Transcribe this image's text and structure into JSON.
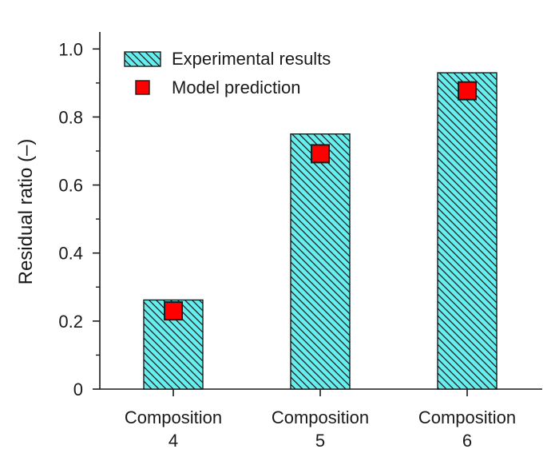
{
  "chart_data": {
    "type": "bar",
    "categories": [
      "Composition\n4",
      "Composition\n5",
      "Composition\n6"
    ],
    "series": [
      {
        "name": "Experimental results",
        "style": "hatched-bar",
        "color": "#66eeee",
        "values": [
          0.262,
          0.75,
          0.93
        ]
      },
      {
        "name": "Model prediction",
        "style": "square-marker",
        "color": "#ff0000",
        "values": [
          0.23,
          0.692,
          0.877
        ]
      }
    ],
    "xlabel": "",
    "ylabel": "Residual ratio (–)",
    "ylim": [
      0,
      1.05
    ],
    "yticks": [
      "0",
      "0.2",
      "0.4",
      "0.6",
      "0.8",
      "1.0"
    ],
    "ytick_values": [
      0,
      0.2,
      0.4,
      0.6,
      0.8,
      1.0
    ],
    "grid": false,
    "legend_position": "top-left"
  }
}
